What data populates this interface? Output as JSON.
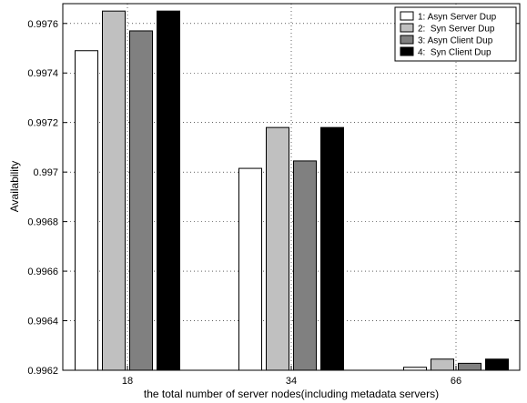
{
  "chart_data": {
    "type": "bar",
    "categories": [
      "18",
      "34",
      "66"
    ],
    "series": [
      {
        "name": "1: Asyn Server Dup",
        "color": "#ffffff",
        "values": [
          0.99749,
          0.997015,
          0.996212
        ]
      },
      {
        "name": "2:  Syn Server Dup",
        "color": "#c0c0c0",
        "values": [
          0.99765,
          0.99718,
          0.996245
        ]
      },
      {
        "name": "3: Asyn Client Dup",
        "color": "#808080",
        "values": [
          0.99757,
          0.997045,
          0.996228
        ]
      },
      {
        "name": "4:  Syn Client Dup",
        "color": "#000000",
        "values": [
          0.99765,
          0.99718,
          0.996245
        ]
      }
    ],
    "xlabel": "the total number of server nodes(including metadata servers)",
    "ylabel": "Availability",
    "ylim": [
      0.9962,
      0.99768
    ],
    "yticks": [
      "0.9962",
      "0.9964",
      "0.9966",
      "0.9968",
      "0.997",
      "0.9972",
      "0.9974",
      "0.9976"
    ],
    "grid": true,
    "legend_position": "top-right"
  }
}
